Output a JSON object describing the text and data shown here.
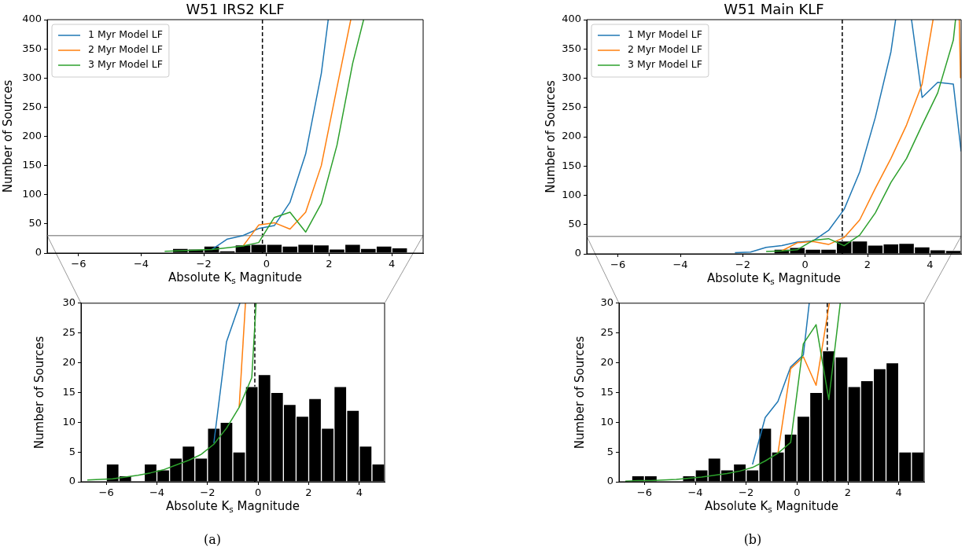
{
  "chart_data": [
    {
      "type": "histogram",
      "title": "W51 IRS2 KLF",
      "xlabel": "Absolute K$_{s}$ Magnitude",
      "ylabel": "Number of Sources",
      "bins": [
        -3,
        -2.5,
        -2,
        -1.5,
        -1,
        -0.5,
        0,
        0.5,
        1,
        1.5,
        2,
        2.5,
        3,
        3.5,
        4,
        4.5
      ],
      "values": [
        8,
        7,
        12,
        4,
        14,
        15,
        15,
        12,
        15,
        14,
        7,
        15,
        8,
        12,
        9
      ],
      "color": "#000000",
      "series": [
        {
          "name": "1 Myr Model LF",
          "type": "line",
          "color": "#1f77b4",
          "x": [
            -1.75,
            -1.25,
            -0.75,
            -0.25,
            0.25,
            0.75,
            1.25,
            1.75,
            1.97
          ],
          "values": [
            6,
            24,
            30,
            42,
            47,
            87,
            170,
            308,
            400
          ]
        },
        {
          "name": "2 Myr Model LF",
          "type": "line",
          "color": "#ff7f0e",
          "x": [
            -0.75,
            -0.25,
            0.25,
            0.75,
            1.25,
            1.75,
            2.25,
            2.69
          ],
          "values": [
            12,
            48,
            52,
            41,
            70,
            150,
            284,
            400
          ]
        },
        {
          "name": "3 Myr Model LF",
          "type": "line",
          "color": "#2ca02c",
          "x": [
            -3.25,
            -2.75,
            -2.25,
            -1.75,
            -1.25,
            -0.75,
            -0.25,
            0.25,
            0.75,
            1.25,
            1.75,
            2.25,
            2.75,
            3.1
          ],
          "values": [
            3,
            4,
            5,
            6,
            9,
            12,
            18,
            61,
            70,
            36,
            85,
            185,
            325,
            400
          ]
        }
      ],
      "xlim": [
        -7,
        5
      ],
      "xticks": [
        {
          "value": -6,
          "label": "−6"
        },
        {
          "value": -4,
          "label": "−4"
        },
        {
          "value": -2,
          "label": "−2"
        },
        0,
        2,
        4
      ],
      "ylim": [
        0,
        400
      ],
      "yticks": [
        0,
        50,
        100,
        150,
        200,
        250,
        300,
        350,
        400
      ],
      "ref_lines": [
        {
          "axis": "x",
          "value": -0.13,
          "color": "#000000",
          "line_style": "dashed"
        },
        {
          "axis": "y",
          "value": 30,
          "color": "#999999"
        }
      ],
      "legend": "top left"
    },
    {
      "type": "histogram",
      "xlabel": "Absolute K$_{s}$ Magnitude",
      "ylabel": "Number of Sources",
      "bins": [
        -6,
        -5.5,
        -5,
        -4.5,
        -4,
        -3.5,
        -3,
        -2.5,
        -2,
        -1.5,
        -1,
        -0.5,
        0,
        0.5,
        1,
        1.5,
        2,
        2.5,
        3,
        3.5,
        4,
        4.5,
        5
      ],
      "values": [
        3,
        1,
        0,
        3,
        2,
        4,
        6,
        4,
        9,
        10,
        5,
        16,
        18,
        15,
        13,
        11,
        14,
        9,
        16,
        12,
        6,
        3
      ],
      "color": "#000000",
      "series": [
        {
          "type": "line",
          "color": "#1f77b4",
          "x": [
            -1.75,
            -1.25,
            -0.72
          ],
          "values": [
            6.5,
            23.5,
            30
          ]
        },
        {
          "type": "line",
          "color": "#ff7f0e",
          "x": [
            -0.75,
            -0.5
          ],
          "values": [
            12.5,
            30
          ]
        },
        {
          "type": "line",
          "color": "#2ca02c",
          "x": [
            -6.75,
            -6.25,
            -5.75,
            -5.25,
            -4.75,
            -4.25,
            -3.75,
            -3.25,
            -2.75,
            -2.25,
            -1.75,
            -1.25,
            -0.75,
            -0.25,
            -0.08
          ],
          "values": [
            0.3,
            0.4,
            0.5,
            0.8,
            1.1,
            1.5,
            2,
            2.8,
            3.6,
            4.6,
            6.3,
            9,
            12.5,
            17.5,
            30
          ]
        }
      ],
      "xlim": [
        -7,
        5
      ],
      "xticks": [
        {
          "value": -6,
          "label": "−6"
        },
        {
          "value": -4,
          "label": "−4"
        },
        {
          "value": -2,
          "label": "−2"
        },
        0,
        2,
        4
      ],
      "ylim": [
        0,
        30
      ],
      "yticks": [
        0,
        5,
        10,
        15,
        20,
        25,
        30
      ],
      "ref_lines": [
        {
          "axis": "x",
          "value": -0.13,
          "color": "#000000",
          "line_style": "dashed"
        }
      ],
      "annotations": [
        "(a)"
      ]
    },
    {
      "type": "histogram",
      "title": "W51 Main KLF",
      "xlabel": "Absolute K$_{s}$ Magnitude",
      "ylabel": "Number of Sources",
      "bins": [
        -1,
        -0.5,
        0,
        0.5,
        1,
        1.5,
        2,
        2.5,
        3,
        3.5,
        4,
        4.5,
        5
      ],
      "values": [
        8,
        11,
        8,
        8,
        22,
        22,
        15,
        17,
        18,
        12,
        7,
        6
      ],
      "color": "#000000",
      "series": [
        {
          "name": "1 Myr Model LF",
          "type": "line",
          "color": "#1f77b4",
          "x": [
            -2.25,
            -1.75,
            -1.25,
            -0.75,
            -0.25,
            0.25,
            0.75,
            1.25,
            1.75,
            2.25,
            2.75,
            2.9,
            3.15,
            3.41,
            3.75,
            4.25,
            4.75,
            5
          ],
          "values": [
            2,
            3,
            11,
            14,
            20,
            22,
            40,
            76,
            140,
            233,
            345,
            400,
            null,
            400,
            267,
            293,
            290,
            175
          ]
        },
        {
          "name": "2 Myr Model LF",
          "type": "line",
          "color": "#ff7f0e",
          "x": [
            -0.75,
            -0.25,
            0.25,
            0.75,
            1.25,
            1.75,
            2.25,
            2.75,
            3.25,
            3.75,
            4.1,
            4.5,
            4.94,
            4.98
          ],
          "values": [
            5,
            19,
            21,
            16,
            28,
            58,
            112,
            163,
            220,
            290,
            400,
            null,
            400,
            300
          ]
        },
        {
          "name": "3 Myr Model LF",
          "type": "line",
          "color": "#2ca02c",
          "x": [
            -1.25,
            -0.75,
            -0.25,
            0.25,
            0.75,
            1.25,
            1.75,
            2.25,
            2.75,
            3.25,
            3.75,
            4.25,
            4.75,
            4.82
          ],
          "values": [
            4,
            5,
            7,
            23,
            26,
            14,
            32,
            70,
            122,
            163,
            220,
            275,
            365,
            400
          ]
        }
      ],
      "xlim": [
        -7,
        5
      ],
      "xticks": [
        {
          "value": -6,
          "label": "−6"
        },
        {
          "value": -4,
          "label": "−4"
        },
        {
          "value": -2,
          "label": "−2"
        },
        0,
        2,
        4
      ],
      "ylim": [
        0,
        400
      ],
      "yticks": [
        0,
        50,
        100,
        150,
        200,
        250,
        300,
        350,
        400
      ],
      "ref_lines": [
        {
          "axis": "x",
          "value": 1.19,
          "color": "#000000",
          "line_style": "dashed"
        },
        {
          "axis": "y",
          "value": 30,
          "color": "#999999"
        }
      ],
      "legend": "top left"
    },
    {
      "type": "histogram",
      "xlabel": "Absolute K$_{s}$ Magnitude",
      "ylabel": "Number of Sources",
      "bins": [
        -6.5,
        -6,
        -5.5,
        -5,
        -4.5,
        -4,
        -3.5,
        -3,
        -2.5,
        -2,
        -1.5,
        -1,
        -0.5,
        0,
        0.5,
        1,
        1.5,
        2,
        2.5,
        3,
        3.5,
        4,
        4.5,
        5
      ],
      "values": [
        1,
        1,
        0,
        0,
        1,
        2,
        4,
        2,
        3,
        2,
        9,
        5,
        8,
        11,
        15,
        22,
        21,
        16,
        17,
        19,
        20,
        5,
        5
      ],
      "color": "#000000",
      "series": [
        {
          "type": "line",
          "color": "#1f77b4",
          "x": [
            -1.75,
            -1.25,
            -0.75,
            -0.25,
            0.25,
            0.48
          ],
          "values": [
            2.9,
            10.8,
            13.5,
            19.3,
            21.3,
            30
          ]
        },
        {
          "type": "line",
          "color": "#ff7f0e",
          "x": [
            -0.75,
            -0.25,
            0.25,
            0.75,
            1.27
          ],
          "values": [
            4.8,
            19,
            21,
            16.2,
            30
          ]
        },
        {
          "type": "line",
          "color": "#2ca02c",
          "x": [
            -6.75,
            -6.25,
            -5.75,
            -5.25,
            -4.75,
            -4.25,
            -3.75,
            -3.25,
            -2.75,
            -2.25,
            -1.75,
            -1.25,
            -0.75,
            -0.25,
            0.25,
            0.75,
            1.25,
            1.7
          ],
          "values": [
            0.1,
            0.2,
            0.2,
            0.3,
            0.4,
            0.6,
            0.8,
            1.1,
            1.4,
            1.8,
            2.4,
            3.5,
            4.8,
            6.6,
            23.2,
            26.4,
            13.8,
            30
          ]
        }
      ],
      "xlim": [
        -7,
        5
      ],
      "xticks": [
        {
          "value": -6,
          "label": "−6"
        },
        {
          "value": -4,
          "label": "−4"
        },
        {
          "value": -2,
          "label": "−2"
        },
        0,
        2,
        4
      ],
      "ylim": [
        0,
        30
      ],
      "yticks": [
        0,
        5,
        10,
        15,
        20,
        25,
        30
      ],
      "ref_lines": [
        {
          "axis": "x",
          "value": 1.19,
          "color": "#000000",
          "line_style": "dashed"
        }
      ],
      "annotations": [
        "(b)"
      ]
    }
  ]
}
